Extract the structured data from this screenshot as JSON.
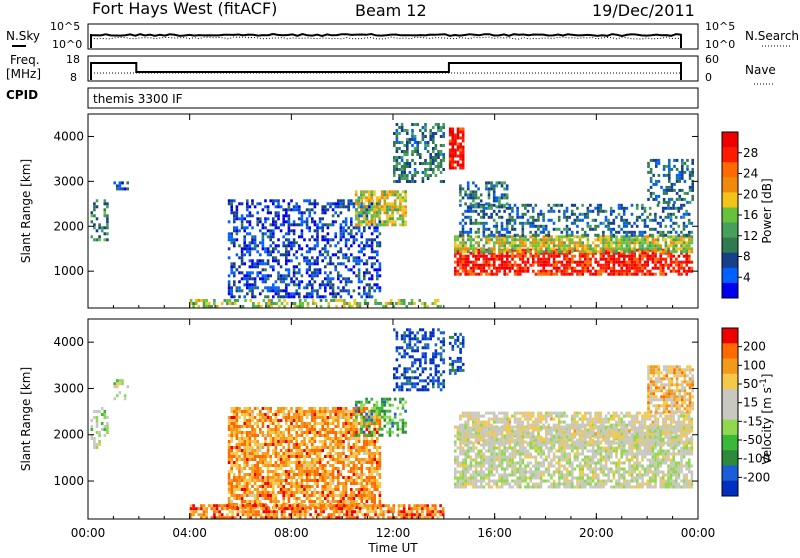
{
  "header": {
    "station": "Fort Hays West (fitACF)",
    "beam": "Beam 12",
    "date": "19/Dec/2011"
  },
  "left_labels": {
    "nsky": "N.Sky",
    "freq_line1": "Freq.",
    "freq_line2": "[MHz]",
    "cpid": "CPID"
  },
  "right_labels": {
    "nsearch": "N.Search",
    "nave": "Nave"
  },
  "noise_panel": {
    "left_ticks": [
      "10^5",
      "10^0"
    ],
    "right_ticks": [
      "10^5",
      "10^0"
    ]
  },
  "freq_panel": {
    "left_ticks": [
      "18",
      "8"
    ],
    "right_ticks": [
      "60",
      "0"
    ]
  },
  "cpid_panel": {
    "text": "themis 3300 IF"
  },
  "x_axis": {
    "label": "Time UT",
    "ticks": [
      "00:00",
      "04:00",
      "08:00",
      "12:00",
      "16:00",
      "20:00",
      "00:00"
    ]
  },
  "chart_data": [
    {
      "type": "heatmap",
      "name": "power",
      "ylabel": "Slant Range [km]",
      "ylim": [
        180,
        4500
      ],
      "xlim_hours": [
        0,
        24
      ],
      "y_ticks": [
        1000,
        2000,
        3000,
        4000
      ],
      "colorbar_label": "Power [dB]",
      "colorbar_ticks": [
        "28",
        "24",
        "20",
        "16",
        "12",
        "8",
        "4"
      ],
      "colors": [
        "#0000ee",
        "#0060ff",
        "#14408c",
        "#2f7a50",
        "#47a05a",
        "#66c23a",
        "#f4c31a",
        "#f08a0a",
        "#ff6a00",
        "#ff1a00",
        "#ee0000"
      ],
      "regions": [
        {
          "t": [
            0.1,
            0.8
          ],
          "r": [
            1700,
            2600
          ],
          "level": 0.35
        },
        {
          "t": [
            1.0,
            1.6
          ],
          "r": [
            2800,
            3000
          ],
          "level": 0.2
        },
        {
          "t": [
            5.5,
            11.5
          ],
          "r": [
            400,
            2600
          ],
          "level": 0.15
        },
        {
          "t": [
            10.5,
            12.5
          ],
          "r": [
            2000,
            2800
          ],
          "level": 0.55
        },
        {
          "t": [
            12.0,
            14.0
          ],
          "r": [
            3000,
            4300
          ],
          "level": 0.3
        },
        {
          "t": [
            14.2,
            14.8
          ],
          "r": [
            3300,
            4200
          ],
          "level": 0.95
        },
        {
          "t": [
            14.4,
            23.8
          ],
          "r": [
            900,
            1500
          ],
          "level": 0.9
        },
        {
          "t": [
            14.4,
            23.8
          ],
          "r": [
            1400,
            1800
          ],
          "level": 0.55
        },
        {
          "t": [
            14.6,
            23.8
          ],
          "r": [
            1800,
            2500
          ],
          "level": 0.25
        },
        {
          "t": [
            14.6,
            16.5
          ],
          "r": [
            2400,
            3000
          ],
          "level": 0.3
        },
        {
          "t": [
            4.0,
            14.0
          ],
          "r": [
            180,
            380
          ],
          "level": 0.5
        },
        {
          "t": [
            22.0,
            23.8
          ],
          "r": [
            2500,
            3500
          ],
          "level": 0.25
        }
      ]
    },
    {
      "type": "heatmap",
      "name": "velocity",
      "ylabel": "Slant Range [km]",
      "ylim": [
        180,
        4500
      ],
      "xlim_hours": [
        0,
        24
      ],
      "y_ticks": [
        1000,
        2000,
        3000,
        4000
      ],
      "colorbar_label": "Velocity [m s^-1]",
      "colorbar_ticks": [
        "200",
        "100",
        "50",
        "15",
        "-15",
        "-50",
        "-100",
        "-200"
      ],
      "colors": [
        "#0030c0",
        "#1a5fd8",
        "#2d8a3a",
        "#3ab83a",
        "#90d850",
        "#c8c8c0",
        "#c8c8c0",
        "#f5c84a",
        "#f29a1a",
        "#ff6a00",
        "#ee0000"
      ],
      "regions": [
        {
          "t": [
            0.1,
            0.8
          ],
          "r": [
            1700,
            2600
          ],
          "level": 0.5
        },
        {
          "t": [
            1.0,
            1.6
          ],
          "r": [
            2800,
            3200
          ],
          "level": 0.5
        },
        {
          "t": [
            5.5,
            11.5
          ],
          "r": [
            400,
            2600
          ],
          "level": 0.78
        },
        {
          "t": [
            10.5,
            12.5
          ],
          "r": [
            2000,
            2800
          ],
          "level": 0.3
        },
        {
          "t": [
            12.0,
            14.0
          ],
          "r": [
            3000,
            4300
          ],
          "level": 0.05
        },
        {
          "t": [
            14.2,
            14.8
          ],
          "r": [
            3300,
            4200
          ],
          "level": 0.1
        },
        {
          "t": [
            14.4,
            23.8
          ],
          "r": [
            900,
            2200
          ],
          "level": 0.52
        },
        {
          "t": [
            14.6,
            23.8
          ],
          "r": [
            1800,
            2500
          ],
          "level": 0.58
        },
        {
          "t": [
            4.0,
            14.0
          ],
          "r": [
            180,
            500
          ],
          "level": 0.82
        },
        {
          "t": [
            22.0,
            23.8
          ],
          "r": [
            2500,
            3500
          ],
          "level": 0.7
        }
      ]
    }
  ]
}
